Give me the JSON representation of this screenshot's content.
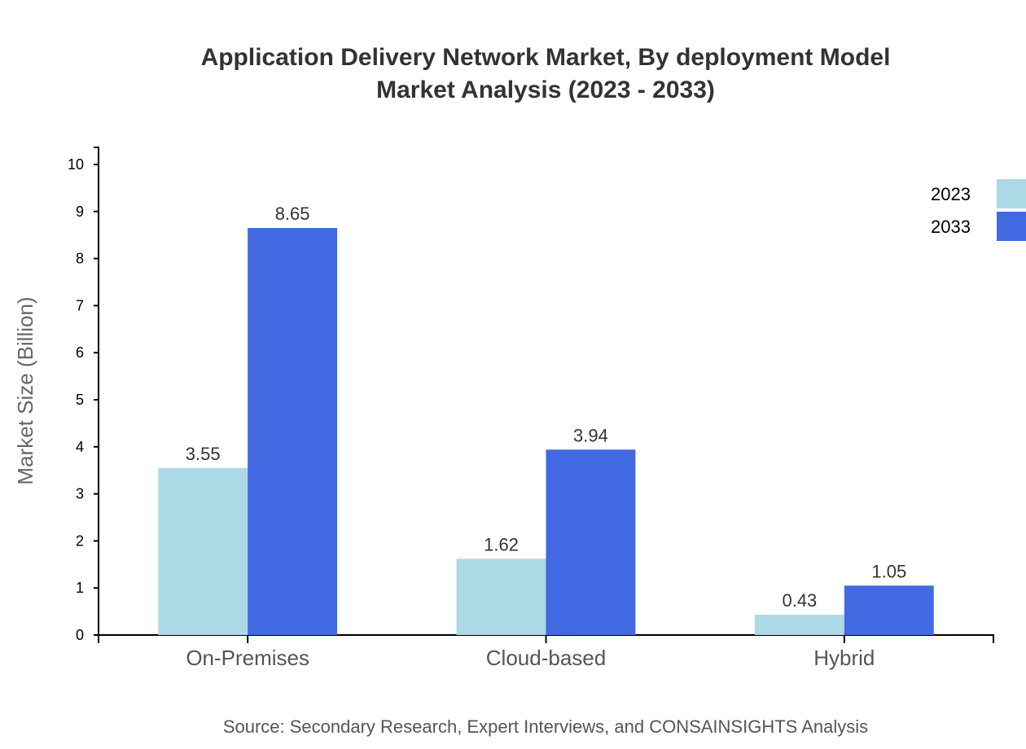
{
  "chart_data": {
    "type": "bar",
    "title": "Application Delivery Network Market, By deployment Model",
    "subtitle": "Market Analysis (2023 - 2033)",
    "xlabel": "",
    "ylabel": "Market Size (Billion)",
    "ylim": [
      0,
      10
    ],
    "yticks": [
      "0",
      "1",
      "2",
      "3",
      "4",
      "5",
      "6",
      "7",
      "8",
      "9",
      "10"
    ],
    "categories": [
      "On-Premises",
      "Cloud-based",
      "Hybrid"
    ],
    "series": [
      {
        "name": "2023",
        "color": "#add8e6",
        "values": [
          3.55,
          1.62,
          0.43
        ],
        "labels": [
          "3.55",
          "1.62",
          "0.43"
        ]
      },
      {
        "name": "2033",
        "color": "#4169e1",
        "values": [
          8.65,
          3.94,
          1.05
        ],
        "labels": [
          "8.65",
          "3.94",
          "1.05"
        ]
      }
    ],
    "grid": false,
    "legend": "top-right",
    "source": "Source: Secondary Research, Expert Interviews, and CONSAINSIGHTS Analysis"
  }
}
